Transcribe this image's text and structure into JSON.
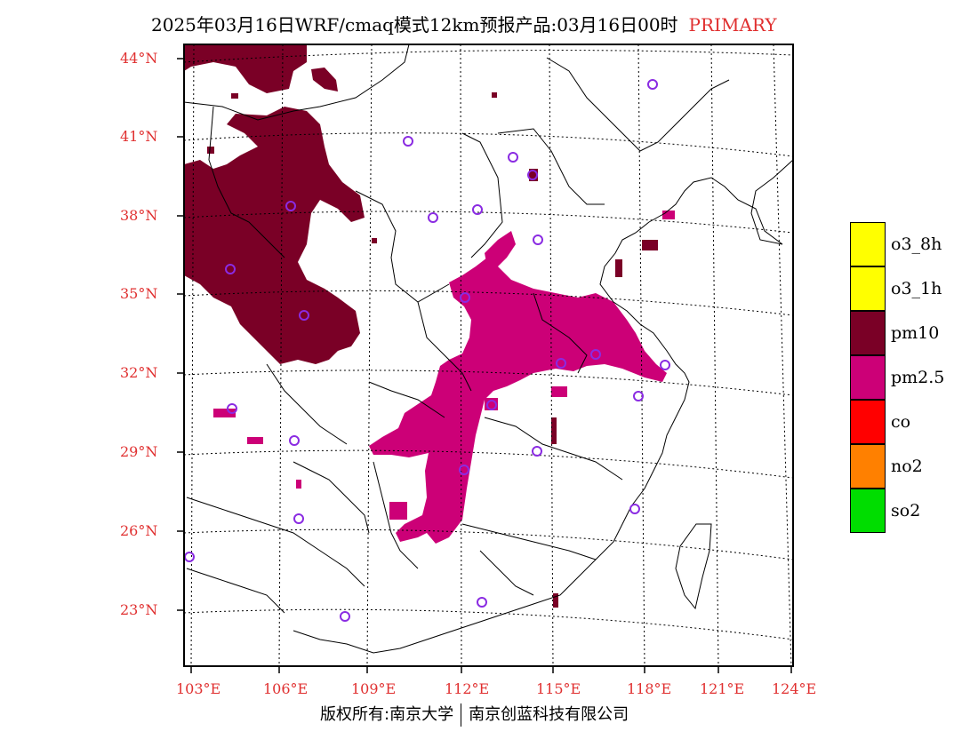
{
  "title": {
    "main": "2025年03月16日WRF/cmaq模式12km预报产品:03月16日00时",
    "highlight": "PRIMARY"
  },
  "latitude_labels": [
    "44°N",
    "41°N",
    "38°N",
    "35°N",
    "32°N",
    "29°N",
    "26°N",
    "23°N"
  ],
  "longitude_labels": [
    "103°E",
    "106°E",
    "109°E",
    "112°E",
    "115°E",
    "118°E",
    "121°E",
    "124°E"
  ],
  "legend": [
    {
      "label": "o3_8h",
      "color": "#ffff00"
    },
    {
      "label": "o3_1h",
      "color": "#ffff00"
    },
    {
      "label": "pm10",
      "color": "#7a0026"
    },
    {
      "label": "pm2.5",
      "color": "#cc0077"
    },
    {
      "label": "co",
      "color": "#ff0000"
    },
    {
      "label": "no2",
      "color": "#ff8000"
    },
    {
      "label": "so2",
      "color": "#00dd00"
    }
  ],
  "footer": {
    "left": "版权所有:南京大学",
    "right": "南京创蓝科技有限公司"
  },
  "colors": {
    "pm10": "#7a0026",
    "pm25": "#cc0077",
    "station_marker": "#8a2be2",
    "axis_label": "#e03030"
  }
}
